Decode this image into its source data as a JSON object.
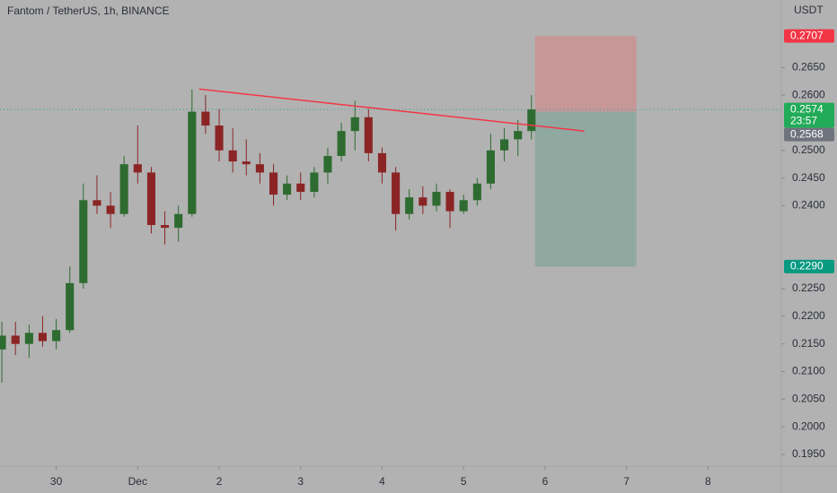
{
  "chart_data": {
    "type": "candlestick",
    "title": "Fantom / TetherUS, 1h, BINANCE",
    "y_axis_label": "USDT",
    "background": "#b2b2b2",
    "up_color": "#2e6b30",
    "down_color": "#8b2525",
    "grid": false,
    "x": [
      -0.667,
      -0.5,
      -0.333,
      -0.167,
      0,
      0.167,
      0.333,
      0.5,
      0.667,
      0.833,
      1,
      1.167,
      1.333,
      1.5,
      1.667,
      1.833,
      2,
      2.167,
      2.333,
      2.5,
      2.667,
      2.833,
      3,
      3.167,
      3.333,
      3.5,
      3.667,
      3.833,
      4,
      4.167,
      4.333,
      4.5,
      4.667,
      4.833,
      5,
      5.167,
      5.333,
      5.5,
      5.667,
      5.833
    ],
    "open": [
      0.214,
      0.2165,
      0.215,
      0.217,
      0.2155,
      0.2175,
      0.226,
      0.241,
      0.24,
      0.2385,
      0.2475,
      0.246,
      0.2365,
      0.236,
      0.2385,
      0.257,
      0.2545,
      0.25,
      0.248,
      0.2475,
      0.246,
      0.242,
      0.244,
      0.2425,
      0.246,
      0.249,
      0.2535,
      0.256,
      0.2495,
      0.246,
      0.2385,
      0.2415,
      0.24,
      0.2425,
      0.239,
      0.241,
      0.244,
      0.25,
      0.252,
      0.2535
    ],
    "high": [
      0.219,
      0.219,
      0.2185,
      0.22,
      0.2195,
      0.229,
      0.244,
      0.2455,
      0.2425,
      0.249,
      0.2545,
      0.247,
      0.239,
      0.24,
      0.261,
      0.26,
      0.2575,
      0.254,
      0.252,
      0.2495,
      0.2475,
      0.2455,
      0.246,
      0.247,
      0.2505,
      0.255,
      0.259,
      0.2575,
      0.2505,
      0.247,
      0.243,
      0.2435,
      0.244,
      0.243,
      0.242,
      0.245,
      0.253,
      0.254,
      0.2555,
      0.26
    ],
    "low": [
      0.208,
      0.213,
      0.2125,
      0.2145,
      0.214,
      0.217,
      0.225,
      0.2385,
      0.236,
      0.238,
      0.244,
      0.235,
      0.233,
      0.2335,
      0.238,
      0.253,
      0.248,
      0.246,
      0.2455,
      0.244,
      0.24,
      0.241,
      0.241,
      0.2415,
      0.244,
      0.248,
      0.25,
      0.248,
      0.244,
      0.2355,
      0.2375,
      0.2385,
      0.239,
      0.236,
      0.2385,
      0.24,
      0.243,
      0.248,
      0.249,
      0.252
    ],
    "close": [
      0.2165,
      0.215,
      0.217,
      0.2155,
      0.2175,
      0.226,
      0.241,
      0.24,
      0.2385,
      0.2475,
      0.246,
      0.2365,
      0.236,
      0.2385,
      0.257,
      0.2545,
      0.25,
      0.248,
      0.2475,
      0.246,
      0.242,
      0.244,
      0.2425,
      0.246,
      0.249,
      0.2535,
      0.256,
      0.2495,
      0.246,
      0.2385,
      0.2415,
      0.24,
      0.2425,
      0.239,
      0.241,
      0.244,
      0.25,
      0.252,
      0.2535,
      0.2574
    ],
    "xlim": [
      -0.69,
      8.9
    ],
    "xticks": [
      {
        "value": 0,
        "label": "30"
      },
      {
        "value": 1,
        "label": "Dec"
      },
      2,
      3,
      4,
      5,
      6,
      7,
      8
    ],
    "ylim": [
      0.1929,
      0.2772
    ],
    "yticks": [
      {
        "value": 0.195,
        "label": "0.1950"
      },
      {
        "value": 0.2,
        "label": "0.2000"
      },
      {
        "value": 0.205,
        "label": "0.2050"
      },
      {
        "value": 0.21,
        "label": "0.2100"
      },
      {
        "value": 0.215,
        "label": "0.2150"
      },
      {
        "value": 0.22,
        "label": "0.2200"
      },
      {
        "value": 0.225,
        "label": "0.2250"
      },
      {
        "value": 0.24,
        "label": "0.2400"
      },
      {
        "value": 0.245,
        "label": "0.2450"
      },
      {
        "value": 0.25,
        "label": "0.2500"
      },
      {
        "value": 0.26,
        "label": "0.2600"
      },
      {
        "value": 0.265,
        "label": "0.2650"
      }
    ],
    "trendline": {
      "x": [
        1.753,
        6.483
      ],
      "y": [
        0.2611,
        0.2535
      ],
      "color": "#f23645"
    },
    "position": {
      "x": [
        5.876,
        7.122
      ],
      "entry": 0.257,
      "stop": 0.2707,
      "target": 0.229,
      "loss_color": "#c79797",
      "profit_color": "#8fa8a0"
    },
    "last_price": {
      "value": 0.2574,
      "color": "#26a69a"
    },
    "price_labels": [
      {
        "value": 0.2707,
        "label": "0.2707",
        "color": "#f23645"
      },
      {
        "value": 0.2574,
        "label": "0.2574",
        "countdown": "23:57",
        "color": "#22ab58"
      },
      {
        "value": 0.2568,
        "label": "0.2568",
        "color": "#6f737d"
      },
      {
        "value": 0.229,
        "label": "0.2290",
        "color": "#089981"
      }
    ]
  }
}
